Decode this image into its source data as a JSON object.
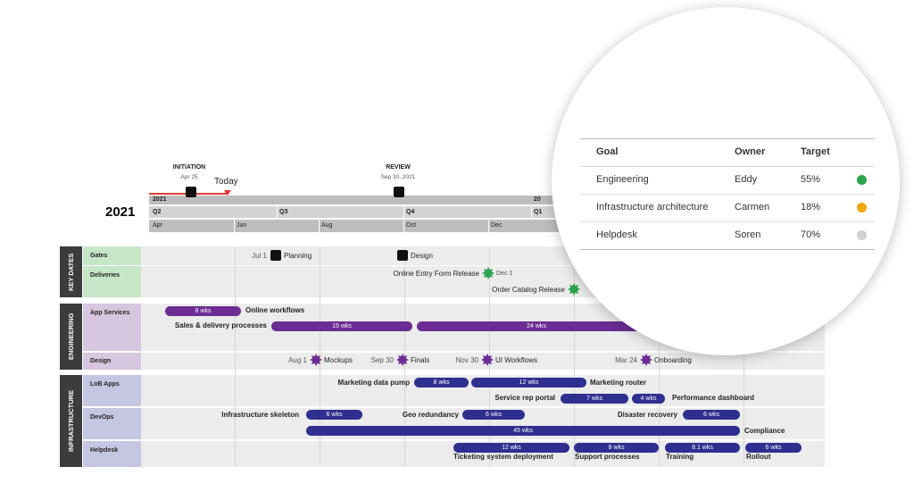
{
  "header": {
    "year": "2021",
    "year_band": "2021",
    "year_band_next": "20",
    "quarters": [
      "Q2",
      "Q3",
      "Q4",
      "Q1"
    ],
    "months": [
      "Apr",
      "Jun",
      "Aug",
      "Oct",
      "Dec"
    ],
    "today": "Today",
    "milestones": [
      {
        "title": "INITIATION",
        "date": "Apr 25"
      },
      {
        "title": "REVIEW",
        "date": "Sep 30, 2021"
      }
    ]
  },
  "groups": [
    "KEY DATES",
    "ENGINEERING",
    "INFRASTRUCTURE"
  ],
  "rows": [
    "Gates",
    "Deliveries",
    "App Services",
    "Design",
    "LoB Apps",
    "DevOps",
    "Helpdesk"
  ],
  "milestones": [
    {
      "date": "Jul 1",
      "name": "Planning"
    },
    {
      "name": "Design"
    },
    {
      "name": "Online Entry Form Release",
      "date": "Dec 1"
    },
    {
      "name": "Order Catalog Release"
    },
    {
      "date": "Aug 1",
      "name": "Mockups"
    },
    {
      "date": "Sep 30",
      "name": "Finals"
    },
    {
      "date": "Nov 30",
      "name": "UI Workflows"
    },
    {
      "date": "Mar 24",
      "name": "Onboarding"
    }
  ],
  "tasks": [
    {
      "name": "Online workflows",
      "duration": "8 wks"
    },
    {
      "name": "Sales & delivery processes",
      "duration": "15 wks"
    },
    {
      "duration": "24 wks"
    },
    {
      "name": "Marketing data pump",
      "duration": "8 wks"
    },
    {
      "name": "Marketing router",
      "duration": "12 wks"
    },
    {
      "name": "Service rep portal",
      "duration": "7 wks"
    },
    {
      "name": "Performance dashboard",
      "duration": "4 wks"
    },
    {
      "name": "Infrastructure skeleton",
      "duration": "6 wks"
    },
    {
      "name": "Geo redundancy",
      "duration": "6 wks"
    },
    {
      "name": "Disaster recovery",
      "duration": "6 wks"
    },
    {
      "name": "Compliance",
      "duration": "45 wks"
    },
    {
      "name": "Ticketing system deployment",
      "duration": "12 wks"
    },
    {
      "name": "Support processes",
      "duration": "8 wks"
    },
    {
      "name": "Training",
      "duration": "8.1 wks"
    },
    {
      "name": "Rollout",
      "duration": "6 wks"
    }
  ],
  "zoom_table": {
    "columns": [
      "Goal",
      "Owner",
      "Target"
    ],
    "rows": [
      [
        "Engineering",
        "Eddy",
        "55%"
      ],
      [
        "Infrastructure architecture",
        "Carmen",
        "18%"
      ],
      [
        "Helpdesk",
        "Soren",
        "70%"
      ]
    ]
  }
}
